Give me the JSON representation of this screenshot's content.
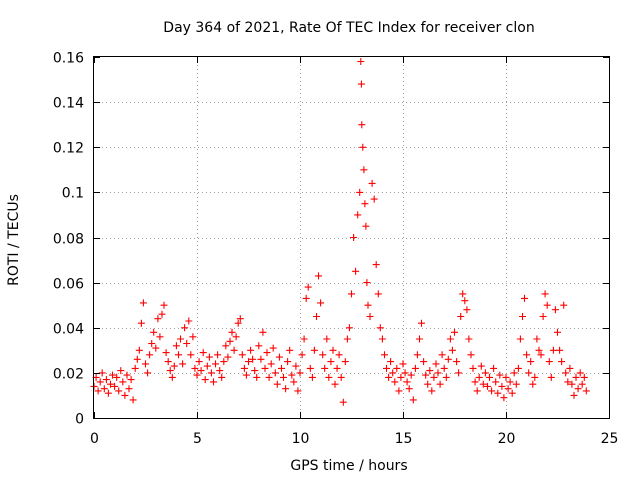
{
  "chart_data": {
    "type": "scatter",
    "title": "Day 364 of 2021, Rate Of TEC Index for receiver clon",
    "xlabel": "GPS time / hours",
    "ylabel": "ROTI / TECUs",
    "xlim": [
      0,
      25
    ],
    "ylim": [
      0,
      0.16
    ],
    "xticks": [
      0,
      5,
      10,
      15,
      20,
      25
    ],
    "xtick_labels": [
      "0",
      "5",
      "10",
      "15",
      "20",
      "25"
    ],
    "yticks": [
      0,
      0.02,
      0.04,
      0.06,
      0.08,
      0.1,
      0.12,
      0.14,
      0.16
    ],
    "ytick_labels": [
      "0",
      "0.02",
      "0.04",
      "0.06",
      "0.08",
      "0.1",
      "0.12",
      "0.14",
      "0.16"
    ],
    "grid": true,
    "marker": "+",
    "color": "#ff0000",
    "series": [
      {
        "name": "ROTI",
        "points": [
          [
            0.0,
            0.014
          ],
          [
            0.1,
            0.018
          ],
          [
            0.2,
            0.012
          ],
          [
            0.3,
            0.016
          ],
          [
            0.4,
            0.02
          ],
          [
            0.5,
            0.013
          ],
          [
            0.6,
            0.017
          ],
          [
            0.7,
            0.011
          ],
          [
            0.8,
            0.015
          ],
          [
            0.9,
            0.019
          ],
          [
            1.0,
            0.014
          ],
          [
            1.1,
            0.018
          ],
          [
            1.2,
            0.012
          ],
          [
            1.3,
            0.021
          ],
          [
            1.4,
            0.016
          ],
          [
            1.5,
            0.01
          ],
          [
            1.6,
            0.019
          ],
          [
            1.7,
            0.013
          ],
          [
            1.8,
            0.017
          ],
          [
            1.9,
            0.008
          ],
          [
            2.0,
            0.022
          ],
          [
            2.1,
            0.026
          ],
          [
            2.2,
            0.03
          ],
          [
            2.3,
            0.042
          ],
          [
            2.4,
            0.051
          ],
          [
            2.5,
            0.024
          ],
          [
            2.6,
            0.02
          ],
          [
            2.7,
            0.028
          ],
          [
            2.8,
            0.033
          ],
          [
            2.9,
            0.038
          ],
          [
            3.0,
            0.031
          ],
          [
            3.1,
            0.044
          ],
          [
            3.2,
            0.036
          ],
          [
            3.3,
            0.046
          ],
          [
            3.4,
            0.05
          ],
          [
            3.5,
            0.029
          ],
          [
            3.6,
            0.025
          ],
          [
            3.7,
            0.021
          ],
          [
            3.8,
            0.018
          ],
          [
            3.9,
            0.023
          ],
          [
            4.0,
            0.032
          ],
          [
            4.1,
            0.028
          ],
          [
            4.2,
            0.035
          ],
          [
            4.3,
            0.024
          ],
          [
            4.4,
            0.04
          ],
          [
            4.5,
            0.033
          ],
          [
            4.6,
            0.043
          ],
          [
            4.7,
            0.028
          ],
          [
            4.8,
            0.036
          ],
          [
            4.9,
            0.022
          ],
          [
            5.0,
            0.019
          ],
          [
            5.1,
            0.025
          ],
          [
            5.2,
            0.021
          ],
          [
            5.3,
            0.029
          ],
          [
            5.4,
            0.017
          ],
          [
            5.5,
            0.023
          ],
          [
            5.6,
            0.027
          ],
          [
            5.7,
            0.02
          ],
          [
            5.8,
            0.016
          ],
          [
            5.9,
            0.024
          ],
          [
            6.0,
            0.028
          ],
          [
            6.1,
            0.021
          ],
          [
            6.2,
            0.018
          ],
          [
            6.3,
            0.025
          ],
          [
            6.4,
            0.032
          ],
          [
            6.5,
            0.027
          ],
          [
            6.6,
            0.034
          ],
          [
            6.7,
            0.038
          ],
          [
            6.8,
            0.03
          ],
          [
            6.9,
            0.036
          ],
          [
            7.0,
            0.042
          ],
          [
            7.1,
            0.044
          ],
          [
            7.2,
            0.028
          ],
          [
            7.3,
            0.022
          ],
          [
            7.4,
            0.019
          ],
          [
            7.5,
            0.025
          ],
          [
            7.6,
            0.03
          ],
          [
            7.7,
            0.026
          ],
          [
            7.8,
            0.021
          ],
          [
            7.9,
            0.018
          ],
          [
            8.0,
            0.032
          ],
          [
            8.1,
            0.026
          ],
          [
            8.2,
            0.038
          ],
          [
            8.3,
            0.022
          ],
          [
            8.4,
            0.029
          ],
          [
            8.5,
            0.018
          ],
          [
            8.6,
            0.024
          ],
          [
            8.7,
            0.031
          ],
          [
            8.8,
            0.02
          ],
          [
            8.9,
            0.015
          ],
          [
            9.0,
            0.027
          ],
          [
            9.1,
            0.022
          ],
          [
            9.2,
            0.018
          ],
          [
            9.3,
            0.013
          ],
          [
            9.4,
            0.025
          ],
          [
            9.5,
            0.03
          ],
          [
            9.6,
            0.019
          ],
          [
            9.7,
            0.016
          ],
          [
            9.8,
            0.023
          ],
          [
            9.9,
            0.012
          ],
          [
            10.0,
            0.02
          ],
          [
            10.1,
            0.028
          ],
          [
            10.2,
            0.035
          ],
          [
            10.3,
            0.053
          ],
          [
            10.4,
            0.058
          ],
          [
            10.5,
            0.022
          ],
          [
            10.6,
            0.018
          ],
          [
            10.7,
            0.03
          ],
          [
            10.8,
            0.045
          ],
          [
            10.9,
            0.063
          ],
          [
            11.0,
            0.051
          ],
          [
            11.1,
            0.028
          ],
          [
            11.2,
            0.022
          ],
          [
            11.3,
            0.035
          ],
          [
            11.4,
            0.018
          ],
          [
            11.5,
            0.025
          ],
          [
            11.6,
            0.03
          ],
          [
            11.7,
            0.015
          ],
          [
            11.8,
            0.022
          ],
          [
            11.9,
            0.028
          ],
          [
            12.0,
            0.018
          ],
          [
            12.1,
            0.007
          ],
          [
            12.2,
            0.025
          ],
          [
            12.3,
            0.035
          ],
          [
            12.4,
            0.04
          ],
          [
            12.5,
            0.055
          ],
          [
            12.6,
            0.08
          ],
          [
            12.7,
            0.065
          ],
          [
            12.8,
            0.09
          ],
          [
            12.9,
            0.1
          ],
          [
            12.95,
            0.158
          ],
          [
            12.98,
            0.148
          ],
          [
            13.0,
            0.13
          ],
          [
            13.05,
            0.12
          ],
          [
            13.1,
            0.11
          ],
          [
            13.15,
            0.095
          ],
          [
            13.2,
            0.085
          ],
          [
            13.25,
            0.06
          ],
          [
            13.3,
            0.05
          ],
          [
            13.4,
            0.045
          ],
          [
            13.5,
            0.104
          ],
          [
            13.6,
            0.097
          ],
          [
            13.7,
            0.068
          ],
          [
            13.8,
            0.055
          ],
          [
            13.9,
            0.04
          ],
          [
            14.0,
            0.035
          ],
          [
            14.1,
            0.028
          ],
          [
            14.2,
            0.022
          ],
          [
            14.3,
            0.018
          ],
          [
            14.4,
            0.025
          ],
          [
            14.5,
            0.02
          ],
          [
            14.6,
            0.016
          ],
          [
            14.7,
            0.022
          ],
          [
            14.8,
            0.012
          ],
          [
            14.9,
            0.018
          ],
          [
            15.0,
            0.024
          ],
          [
            15.1,
            0.02
          ],
          [
            15.2,
            0.016
          ],
          [
            15.3,
            0.013
          ],
          [
            15.4,
            0.019
          ],
          [
            15.5,
            0.008
          ],
          [
            15.6,
            0.022
          ],
          [
            15.7,
            0.028
          ],
          [
            15.8,
            0.035
          ],
          [
            15.9,
            0.042
          ],
          [
            16.0,
            0.025
          ],
          [
            16.1,
            0.019
          ],
          [
            16.2,
            0.015
          ],
          [
            16.3,
            0.021
          ],
          [
            16.4,
            0.012
          ],
          [
            16.5,
            0.018
          ],
          [
            16.6,
            0.024
          ],
          [
            16.7,
            0.02
          ],
          [
            16.8,
            0.015
          ],
          [
            16.9,
            0.028
          ],
          [
            17.0,
            0.022
          ],
          [
            17.1,
            0.018
          ],
          [
            17.2,
            0.026
          ],
          [
            17.3,
            0.035
          ],
          [
            17.4,
            0.03
          ],
          [
            17.5,
            0.038
          ],
          [
            17.6,
            0.025
          ],
          [
            17.7,
            0.02
          ],
          [
            17.8,
            0.045
          ],
          [
            17.9,
            0.055
          ],
          [
            18.0,
            0.052
          ],
          [
            18.1,
            0.048
          ],
          [
            18.2,
            0.035
          ],
          [
            18.3,
            0.028
          ],
          [
            18.4,
            0.022
          ],
          [
            18.5,
            0.016
          ],
          [
            18.6,
            0.012
          ],
          [
            18.7,
            0.018
          ],
          [
            18.8,
            0.023
          ],
          [
            18.9,
            0.015
          ],
          [
            19.0,
            0.02
          ],
          [
            19.1,
            0.014
          ],
          [
            19.2,
            0.018
          ],
          [
            19.3,
            0.012
          ],
          [
            19.4,
            0.022
          ],
          [
            19.5,
            0.016
          ],
          [
            19.6,
            0.011
          ],
          [
            19.7,
            0.019
          ],
          [
            19.8,
            0.014
          ],
          [
            19.9,
            0.009
          ],
          [
            20.0,
            0.018
          ],
          [
            20.1,
            0.013
          ],
          [
            20.2,
            0.016
          ],
          [
            20.3,
            0.011
          ],
          [
            20.4,
            0.02
          ],
          [
            20.5,
            0.015
          ],
          [
            20.6,
            0.022
          ],
          [
            20.7,
            0.035
          ],
          [
            20.8,
            0.045
          ],
          [
            20.9,
            0.053
          ],
          [
            21.0,
            0.028
          ],
          [
            21.1,
            0.02
          ],
          [
            21.2,
            0.025
          ],
          [
            21.3,
            0.015
          ],
          [
            21.4,
            0.018
          ],
          [
            21.5,
            0.035
          ],
          [
            21.6,
            0.03
          ],
          [
            21.7,
            0.028
          ],
          [
            21.8,
            0.045
          ],
          [
            21.9,
            0.055
          ],
          [
            22.0,
            0.05
          ],
          [
            22.1,
            0.025
          ],
          [
            22.2,
            0.018
          ],
          [
            22.3,
            0.03
          ],
          [
            22.4,
            0.048
          ],
          [
            22.5,
            0.038
          ],
          [
            22.6,
            0.03
          ],
          [
            22.7,
            0.025
          ],
          [
            22.8,
            0.05
          ],
          [
            22.9,
            0.02
          ],
          [
            23.0,
            0.016
          ],
          [
            23.1,
            0.022
          ],
          [
            23.2,
            0.015
          ],
          [
            23.3,
            0.01
          ],
          [
            23.4,
            0.018
          ],
          [
            23.5,
            0.013
          ],
          [
            23.6,
            0.02
          ],
          [
            23.7,
            0.015
          ],
          [
            23.8,
            0.018
          ],
          [
            23.9,
            0.012
          ]
        ]
      }
    ]
  }
}
